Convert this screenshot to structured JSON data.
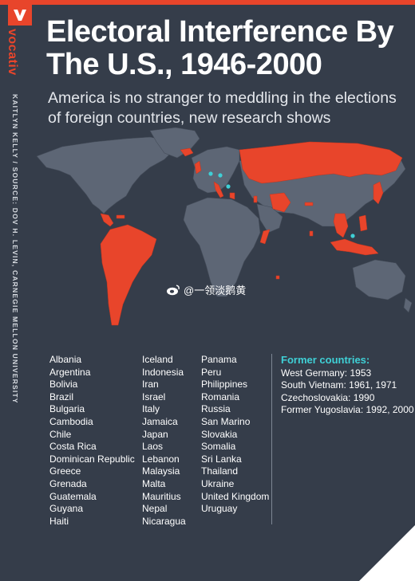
{
  "brand": {
    "name": "vocativ",
    "credit": "KAITLYN KELLY / SOURCE: DOV H. LEVIN, CARNEGIE MELLON UNIVERSITY",
    "accent_color": "#e8452b",
    "background_color": "#353d4a",
    "highlight_color": "#3fd0d6"
  },
  "header": {
    "title": "Electoral Interference By The U.S., 1946-2000",
    "subtitle": "America is no stranger to meddling in the elections of foreign countries, new research shows"
  },
  "map": {
    "land_color": "#5d6675",
    "highlight_color": "#e8452b",
    "marker_color": "#3fd0d6",
    "highlighted_regions": [
      "Russia",
      "Latin America",
      "South Asia",
      "Southeast Asia",
      "Japan",
      "Iran",
      "Iceland"
    ]
  },
  "watermark": {
    "text": "@一领淡鹅黄",
    "icon": "weibo-icon"
  },
  "countries": {
    "col1": [
      "Albania",
      "Argentina",
      "Bolivia",
      "Brazil",
      "Bulgaria",
      "Cambodia",
      "Chile",
      "Costa Rica",
      "Dominican Republic",
      "Greece",
      "Grenada",
      "Guatemala",
      "Guyana",
      "Haiti"
    ],
    "col2": [
      "Iceland",
      "Indonesia",
      "Iran",
      "Israel",
      "Italy",
      "Jamaica",
      "Japan",
      "Laos",
      "Lebanon",
      "Malaysia",
      "Malta",
      "Mauritius",
      "Nepal",
      "Nicaragua"
    ],
    "col3": [
      "Panama",
      "Peru",
      "Philippines",
      "Romania",
      "Russia",
      "San Marino",
      "Slovakia",
      "Somalia",
      "Sri Lanka",
      "Thailand",
      "Ukraine",
      "United Kingdom",
      "Uruguay"
    ]
  },
  "former": {
    "title": "Former countries:",
    "items": [
      "West Germany: 1953",
      "South Vietnam: 1961, 1971",
      "Czechoslovakia: 1990",
      "Former Yugoslavia: 1992, 2000"
    ]
  }
}
